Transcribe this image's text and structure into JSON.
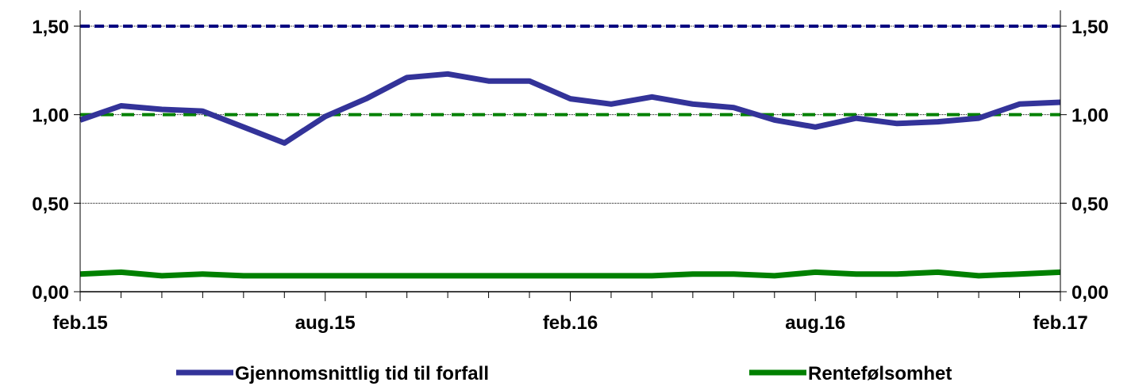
{
  "chart_data": {
    "type": "line",
    "x_tick_labels": [
      "feb.15",
      "aug.15",
      "feb.16",
      "aug.16",
      "feb.17"
    ],
    "x_tick_positions": [
      0,
      6,
      12,
      18,
      24
    ],
    "y_tick_labels": [
      "0,00",
      "0,50",
      "1,00",
      "1,50"
    ],
    "y_ticks": [
      0,
      0.5,
      1.0,
      1.5
    ],
    "ylim": [
      0,
      1.5
    ],
    "x_count": 25,
    "grid": "horizontal",
    "legend_position": "bottom",
    "series": [
      {
        "name": "Gjennomsnittlig tid til forfall",
        "color": "#333399",
        "values": [
          0.97,
          1.05,
          1.03,
          1.02,
          0.93,
          0.84,
          0.99,
          1.09,
          1.21,
          1.23,
          1.19,
          1.19,
          1.09,
          1.06,
          1.1,
          1.06,
          1.04,
          0.97,
          0.93,
          0.98,
          0.95,
          0.96,
          0.98,
          1.06,
          1.07
        ]
      },
      {
        "name": "Rentefølsomhet",
        "color": "#008000",
        "values": [
          0.1,
          0.11,
          0.09,
          0.1,
          0.09,
          0.09,
          0.09,
          0.09,
          0.09,
          0.09,
          0.09,
          0.09,
          0.09,
          0.09,
          0.09,
          0.1,
          0.1,
          0.09,
          0.11,
          0.1,
          0.1,
          0.11,
          0.09,
          0.1,
          0.11
        ]
      }
    ],
    "reference_lines": [
      {
        "value": 1.5,
        "color": "#000080",
        "style": "dashed"
      },
      {
        "value": 1.0,
        "color": "#008000",
        "style": "dashed"
      }
    ]
  }
}
